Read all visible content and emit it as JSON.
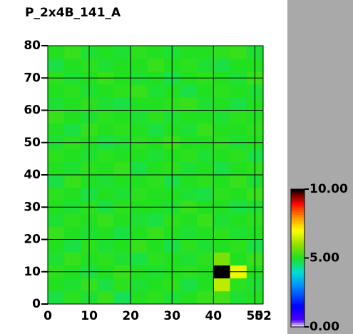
{
  "chart_data": {
    "type": "heatmap",
    "title": "P_2x4B_141_A",
    "xbins": [
      0,
      4,
      8,
      12,
      16,
      20,
      24,
      28,
      32,
      36,
      40,
      44,
      48,
      52
    ],
    "ybins": [
      0,
      4,
      8,
      12,
      16,
      20,
      24,
      28,
      32,
      36,
      40,
      44,
      48,
      52,
      56,
      60,
      64,
      68,
      72,
      76,
      80
    ],
    "z": [
      [
        4.8,
        5.1,
        4.9,
        5.2,
        4.7,
        5.0,
        5.1,
        4.9,
        5.0,
        5.2,
        5.3,
        4.9,
        5.0
      ],
      [
        5.0,
        4.9,
        5.2,
        4.8,
        5.1,
        4.9,
        5.0,
        5.1,
        4.8,
        5.0,
        6.4,
        5.1,
        4.9
      ],
      [
        5.1,
        5.0,
        4.8,
        5.0,
        5.2,
        5.0,
        4.9,
        5.0,
        5.1,
        5.0,
        11,
        6.8,
        5.0
      ],
      [
        4.9,
        5.2,
        5.0,
        5.1,
        4.9,
        4.8,
        5.1,
        5.0,
        4.9,
        5.1,
        5.8,
        5.0,
        5.2
      ],
      [
        5.0,
        4.8,
        5.1,
        4.9,
        5.0,
        5.2,
        5.0,
        4.8,
        5.1,
        4.9,
        5.0,
        5.1,
        4.8
      ],
      [
        5.2,
        5.0,
        4.9,
        5.0,
        4.8,
        5.0,
        5.2,
        5.0,
        4.9,
        5.0,
        5.1,
        4.9,
        5.0
      ],
      [
        4.9,
        5.1,
        5.0,
        5.2,
        5.0,
        4.9,
        4.8,
        5.1,
        5.0,
        5.2,
        4.9,
        5.0,
        5.1
      ],
      [
        5.0,
        4.9,
        5.1,
        4.8,
        5.1,
        5.0,
        5.0,
        4.9,
        5.2,
        5.0,
        5.0,
        4.8,
        4.9
      ],
      [
        5.1,
        5.0,
        4.8,
        5.0,
        4.9,
        5.1,
        5.0,
        5.0,
        4.9,
        4.8,
        5.1,
        5.0,
        5.2
      ],
      [
        4.8,
        5.2,
        5.0,
        4.9,
        5.0,
        5.0,
        5.1,
        4.8,
        5.0,
        5.1,
        5.0,
        5.2,
        4.9
      ],
      [
        5.0,
        4.9,
        5.1,
        5.0,
        5.2,
        4.8,
        5.0,
        5.1,
        4.9,
        5.0,
        4.8,
        5.0,
        5.1
      ],
      [
        5.1,
        5.0,
        4.9,
        5.1,
        5.0,
        5.0,
        4.9,
        5.0,
        5.1,
        4.9,
        5.0,
        5.1,
        4.8
      ],
      [
        4.9,
        5.1,
        5.0,
        4.8,
        4.9,
        5.1,
        5.0,
        5.2,
        5.0,
        5.0,
        5.1,
        4.9,
        5.0
      ],
      [
        5.0,
        4.8,
        5.2,
        5.0,
        5.1,
        5.0,
        4.8,
        5.0,
        4.9,
        5.2,
        5.0,
        5.0,
        5.1
      ],
      [
        5.2,
        5.0,
        4.9,
        5.1,
        5.0,
        4.9,
        5.1,
        4.9,
        5.0,
        5.0,
        4.9,
        5.1,
        5.0
      ],
      [
        4.9,
        5.0,
        5.1,
        4.9,
        4.8,
        5.0,
        5.0,
        5.1,
        5.2,
        4.9,
        5.0,
        4.8,
        5.0
      ],
      [
        5.0,
        5.1,
        4.9,
        5.0,
        5.1,
        5.2,
        4.9,
        5.0,
        4.8,
        5.0,
        5.1,
        5.0,
        4.9
      ],
      [
        5.1,
        4.9,
        5.0,
        5.2,
        5.0,
        4.9,
        5.0,
        4.8,
        5.0,
        5.1,
        5.0,
        4.9,
        5.2
      ],
      [
        4.8,
        5.0,
        5.1,
        4.9,
        5.0,
        5.0,
        5.2,
        5.0,
        5.1,
        4.9,
        4.8,
        5.0,
        5.0
      ],
      [
        5.0,
        5.2,
        4.9,
        5.0,
        4.9,
        5.1,
        5.0,
        4.9,
        5.0,
        5.0,
        5.1,
        5.2,
        4.9
      ]
    ],
    "xlim": [
      0,
      52
    ],
    "xticks": [
      0,
      10,
      20,
      30,
      40,
      50,
      52
    ],
    "ylim": [
      0,
      80
    ],
    "yticks": [
      0,
      10,
      20,
      30,
      40,
      50,
      60,
      70,
      80
    ],
    "grid": true,
    "clim": [
      0,
      10
    ],
    "cticks": [
      {
        "value": 0,
        "label": "0.00"
      },
      {
        "value": 5,
        "label": "5.00"
      },
      {
        "value": 10,
        "label": "10.00"
      }
    ],
    "colorscale": [
      [
        0,
        "#ffffff"
      ],
      [
        0.05,
        "#5000ff"
      ],
      [
        0.15,
        "#0000ff"
      ],
      [
        0.3,
        "#0090ff"
      ],
      [
        0.4,
        "#00e0d0"
      ],
      [
        0.5,
        "#20e020"
      ],
      [
        0.6,
        "#90e000"
      ],
      [
        0.7,
        "#ffff00"
      ],
      [
        0.8,
        "#ff9000"
      ],
      [
        0.9,
        "#ff0000"
      ],
      [
        1,
        "#000000"
      ]
    ]
  }
}
